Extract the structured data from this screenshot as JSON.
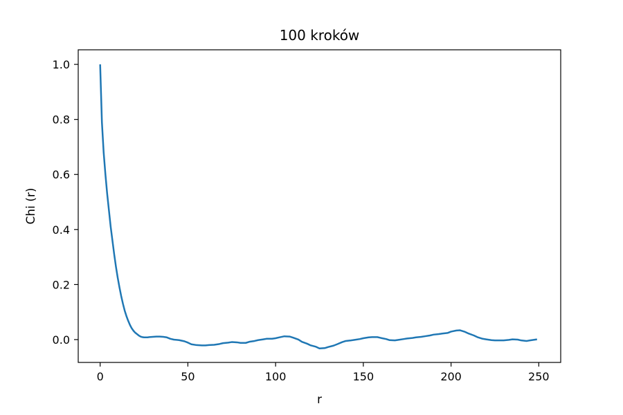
{
  "chart_data": {
    "type": "line",
    "title": "100 kroków",
    "xlabel": "r",
    "ylabel": "Chi (r)",
    "xlim": [
      -12.5,
      262.5
    ],
    "ylim": [
      -0.083,
      1.053
    ],
    "xticks": [
      0,
      50,
      100,
      150,
      200,
      250
    ],
    "xtick_labels": [
      "0",
      "50",
      "100",
      "150",
      "200",
      "250"
    ],
    "yticks": [
      0.0,
      0.2,
      0.4,
      0.6,
      0.8,
      1.0
    ],
    "ytick_labels": [
      "0.0",
      "0.2",
      "0.4",
      "0.6",
      "0.8",
      "1.0"
    ],
    "grid": false,
    "color": "#1f77b4",
    "series": [
      {
        "x": [
          0,
          1,
          2,
          3,
          4,
          5,
          6,
          7,
          8,
          9,
          10,
          11,
          12,
          13,
          14,
          15,
          16,
          17,
          18,
          19,
          20,
          21,
          22,
          23,
          24,
          25,
          26,
          27,
          28,
          30,
          32,
          34,
          36,
          38,
          40,
          42,
          45,
          48,
          50,
          52,
          55,
          58,
          60,
          62,
          65,
          68,
          70,
          73,
          75,
          78,
          80,
          83,
          85,
          88,
          90,
          93,
          95,
          98,
          100,
          102,
          105,
          108,
          110,
          113,
          115,
          118,
          120,
          123,
          125,
          128,
          130,
          133,
          135,
          138,
          140,
          143,
          145,
          148,
          150,
          153,
          155,
          158,
          160,
          163,
          165,
          168,
          170,
          173,
          175,
          178,
          180,
          183,
          185,
          188,
          190,
          193,
          195,
          198,
          200,
          203,
          205,
          208,
          210,
          213,
          215,
          218,
          220,
          223,
          225,
          228,
          230,
          233,
          235,
          238,
          240,
          243,
          245,
          248,
          249
        ],
        "y": [
          1.0,
          0.79,
          0.68,
          0.6,
          0.53,
          0.47,
          0.41,
          0.36,
          0.31,
          0.265,
          0.225,
          0.19,
          0.158,
          0.13,
          0.105,
          0.085,
          0.068,
          0.053,
          0.041,
          0.032,
          0.025,
          0.02,
          0.015,
          0.011,
          0.009,
          0.008,
          0.008,
          0.008,
          0.009,
          0.01,
          0.011,
          0.011,
          0.01,
          0.008,
          0.003,
          0.0,
          -0.002,
          -0.006,
          -0.011,
          -0.017,
          -0.02,
          -0.021,
          -0.021,
          -0.02,
          -0.019,
          -0.016,
          -0.013,
          -0.011,
          -0.009,
          -0.01,
          -0.012,
          -0.012,
          -0.008,
          -0.005,
          -0.002,
          0.001,
          0.003,
          0.003,
          0.005,
          0.008,
          0.012,
          0.011,
          0.007,
          0.0,
          -0.008,
          -0.015,
          -0.021,
          -0.026,
          -0.032,
          -0.031,
          -0.027,
          -0.022,
          -0.017,
          -0.009,
          -0.005,
          -0.003,
          -0.001,
          0.002,
          0.005,
          0.008,
          0.009,
          0.009,
          0.006,
          0.002,
          -0.002,
          -0.003,
          -0.001,
          0.002,
          0.004,
          0.006,
          0.008,
          0.01,
          0.012,
          0.015,
          0.018,
          0.02,
          0.022,
          0.024,
          0.029,
          0.033,
          0.034,
          0.028,
          0.022,
          0.015,
          0.009,
          0.003,
          0.001,
          -0.002,
          -0.003,
          -0.003,
          -0.003,
          -0.001,
          0.001,
          0.0,
          -0.003,
          -0.005,
          -0.003,
          0.0,
          0.001
        ]
      }
    ]
  }
}
